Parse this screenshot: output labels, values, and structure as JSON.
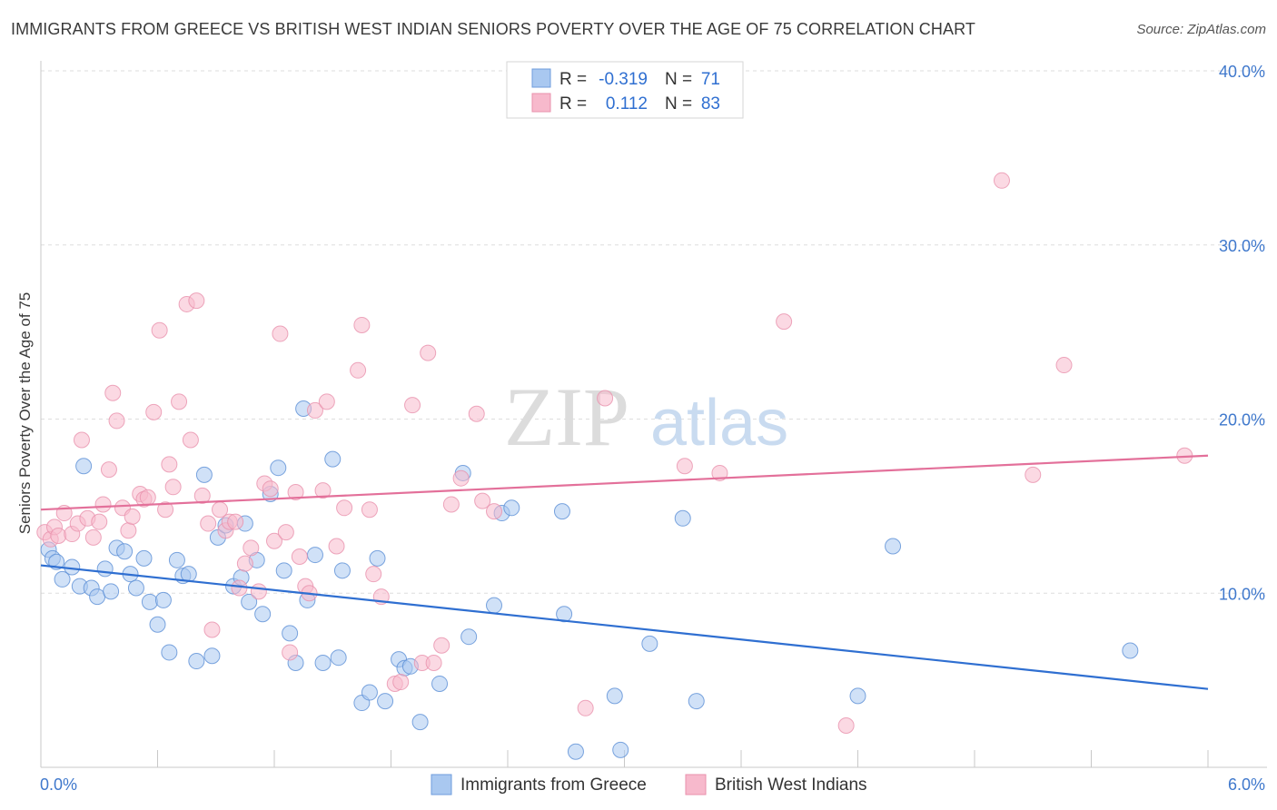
{
  "title": "IMMIGRANTS FROM GREECE VS BRITISH WEST INDIAN SENIORS POVERTY OVER THE AGE OF 75 CORRELATION CHART",
  "source": "Source: ZipAtlas.com",
  "watermark": {
    "zip": "ZIP",
    "atlas": "atlas"
  },
  "legend_top": {
    "rows": [
      {
        "r_label": "R =",
        "r_value": "-0.319",
        "n_label": "N =",
        "n_value": "71",
        "color": "#a9c8f0"
      },
      {
        "r_label": "R =",
        "r_value": "0.112",
        "n_label": "N =",
        "n_value": "83",
        "color": "#f7b9cc"
      }
    ]
  },
  "legend_bottom": [
    {
      "label": "Immigrants from Greece",
      "color": "#a9c8f0"
    },
    {
      "label": "British West Indians",
      "color": "#f7b9cc"
    }
  ],
  "chart_data": {
    "type": "scatter",
    "ylabel": "Seniors Poverty Over the Age of 75",
    "xlim": [
      0,
      6
    ],
    "ylim": [
      0,
      40
    ],
    "x_tick_labels": [
      "0.0%",
      "6.0%"
    ],
    "y_tick_labels": [
      "10.0%",
      "20.0%",
      "30.0%",
      "40.0%"
    ],
    "y_ticks": [
      10,
      20,
      30,
      40
    ],
    "grid": true,
    "series": [
      {
        "name": "Immigrants from Greece",
        "color": "#a9c8f0",
        "edge": "#5b8fd6",
        "trend_color": "#2f6fd1",
        "trend": [
          [
            0,
            11.6
          ],
          [
            6,
            4.5
          ]
        ],
        "points": [
          [
            0.04,
            12.5
          ],
          [
            0.06,
            12.0
          ],
          [
            0.08,
            11.8
          ],
          [
            0.11,
            10.8
          ],
          [
            0.16,
            11.5
          ],
          [
            0.2,
            10.4
          ],
          [
            0.22,
            17.3
          ],
          [
            0.26,
            10.3
          ],
          [
            0.29,
            9.8
          ],
          [
            0.33,
            11.4
          ],
          [
            0.36,
            10.1
          ],
          [
            0.39,
            12.6
          ],
          [
            0.43,
            12.4
          ],
          [
            0.46,
            11.1
          ],
          [
            0.49,
            10.3
          ],
          [
            0.53,
            12.0
          ],
          [
            0.56,
            9.5
          ],
          [
            0.6,
            8.2
          ],
          [
            0.63,
            9.6
          ],
          [
            0.66,
            6.6
          ],
          [
            0.7,
            11.9
          ],
          [
            0.73,
            11.0
          ],
          [
            0.76,
            11.1
          ],
          [
            0.8,
            6.1
          ],
          [
            0.84,
            16.8
          ],
          [
            0.88,
            6.4
          ],
          [
            0.91,
            13.2
          ],
          [
            0.95,
            13.9
          ],
          [
            0.99,
            10.4
          ],
          [
            1.03,
            10.9
          ],
          [
            1.05,
            14.0
          ],
          [
            1.07,
            9.5
          ],
          [
            1.11,
            11.9
          ],
          [
            1.14,
            8.8
          ],
          [
            1.18,
            15.7
          ],
          [
            1.22,
            17.2
          ],
          [
            1.25,
            11.3
          ],
          [
            1.28,
            7.7
          ],
          [
            1.31,
            6.0
          ],
          [
            1.35,
            20.6
          ],
          [
            1.37,
            9.6
          ],
          [
            1.41,
            12.2
          ],
          [
            1.45,
            6.0
          ],
          [
            1.5,
            17.7
          ],
          [
            1.53,
            6.3
          ],
          [
            1.55,
            11.3
          ],
          [
            1.65,
            3.7
          ],
          [
            1.69,
            4.3
          ],
          [
            1.73,
            12.0
          ],
          [
            1.77,
            3.8
          ],
          [
            1.84,
            6.2
          ],
          [
            1.87,
            5.7
          ],
          [
            1.9,
            5.8
          ],
          [
            1.95,
            2.6
          ],
          [
            2.05,
            4.8
          ],
          [
            2.17,
            16.9
          ],
          [
            2.2,
            7.5
          ],
          [
            2.33,
            9.3
          ],
          [
            2.37,
            14.6
          ],
          [
            2.42,
            14.9
          ],
          [
            2.68,
            14.7
          ],
          [
            2.69,
            8.8
          ],
          [
            2.75,
            0.9
          ],
          [
            2.95,
            4.1
          ],
          [
            2.98,
            1.0
          ],
          [
            3.13,
            7.1
          ],
          [
            3.3,
            14.3
          ],
          [
            3.37,
            3.8
          ],
          [
            4.2,
            4.1
          ],
          [
            4.38,
            12.7
          ],
          [
            5.6,
            6.7
          ]
        ]
      },
      {
        "name": "British West Indians",
        "color": "#f7b9cc",
        "edge": "#e991ad",
        "trend_color": "#e3709a",
        "trend": [
          [
            0,
            14.8
          ],
          [
            6,
            17.9
          ]
        ],
        "points": [
          [
            0.02,
            13.5
          ],
          [
            0.05,
            13.1
          ],
          [
            0.07,
            13.8
          ],
          [
            0.09,
            13.3
          ],
          [
            0.12,
            14.6
          ],
          [
            0.16,
            13.4
          ],
          [
            0.19,
            14.0
          ],
          [
            0.21,
            18.8
          ],
          [
            0.24,
            14.3
          ],
          [
            0.27,
            13.2
          ],
          [
            0.3,
            14.1
          ],
          [
            0.32,
            15.1
          ],
          [
            0.35,
            17.1
          ],
          [
            0.37,
            21.5
          ],
          [
            0.39,
            19.9
          ],
          [
            0.42,
            14.9
          ],
          [
            0.45,
            13.6
          ],
          [
            0.47,
            14.4
          ],
          [
            0.51,
            15.7
          ],
          [
            0.53,
            15.4
          ],
          [
            0.55,
            15.5
          ],
          [
            0.58,
            20.4
          ],
          [
            0.61,
            25.1
          ],
          [
            0.64,
            14.8
          ],
          [
            0.66,
            17.4
          ],
          [
            0.68,
            16.1
          ],
          [
            0.71,
            21.0
          ],
          [
            0.75,
            26.6
          ],
          [
            0.77,
            18.8
          ],
          [
            0.8,
            26.8
          ],
          [
            0.83,
            15.6
          ],
          [
            0.86,
            14.0
          ],
          [
            0.88,
            7.9
          ],
          [
            0.92,
            14.8
          ],
          [
            0.95,
            13.6
          ],
          [
            0.97,
            14.1
          ],
          [
            1.0,
            14.1
          ],
          [
            1.02,
            10.3
          ],
          [
            1.05,
            11.7
          ],
          [
            1.08,
            12.6
          ],
          [
            1.12,
            10.1
          ],
          [
            1.15,
            16.3
          ],
          [
            1.18,
            16.0
          ],
          [
            1.2,
            13.0
          ],
          [
            1.23,
            24.9
          ],
          [
            1.26,
            13.5
          ],
          [
            1.28,
            6.6
          ],
          [
            1.31,
            15.8
          ],
          [
            1.33,
            12.1
          ],
          [
            1.36,
            10.4
          ],
          [
            1.38,
            10.0
          ],
          [
            1.41,
            20.5
          ],
          [
            1.45,
            15.9
          ],
          [
            1.47,
            21.0
          ],
          [
            1.52,
            12.7
          ],
          [
            1.56,
            14.9
          ],
          [
            1.63,
            22.8
          ],
          [
            1.65,
            25.4
          ],
          [
            1.69,
            14.8
          ],
          [
            1.71,
            11.1
          ],
          [
            1.75,
            9.8
          ],
          [
            1.82,
            4.8
          ],
          [
            1.85,
            4.9
          ],
          [
            1.91,
            20.8
          ],
          [
            1.96,
            6.0
          ],
          [
            1.99,
            23.8
          ],
          [
            2.02,
            6.0
          ],
          [
            2.06,
            7.0
          ],
          [
            2.11,
            15.1
          ],
          [
            2.16,
            16.6
          ],
          [
            2.24,
            20.3
          ],
          [
            2.27,
            15.3
          ],
          [
            2.33,
            14.7
          ],
          [
            2.8,
            3.4
          ],
          [
            2.9,
            21.2
          ],
          [
            3.31,
            17.3
          ],
          [
            3.49,
            16.9
          ],
          [
            3.82,
            25.6
          ],
          [
            4.14,
            2.4
          ],
          [
            4.94,
            33.7
          ],
          [
            5.1,
            16.8
          ],
          [
            5.26,
            23.1
          ],
          [
            5.88,
            17.9
          ]
        ]
      }
    ]
  }
}
